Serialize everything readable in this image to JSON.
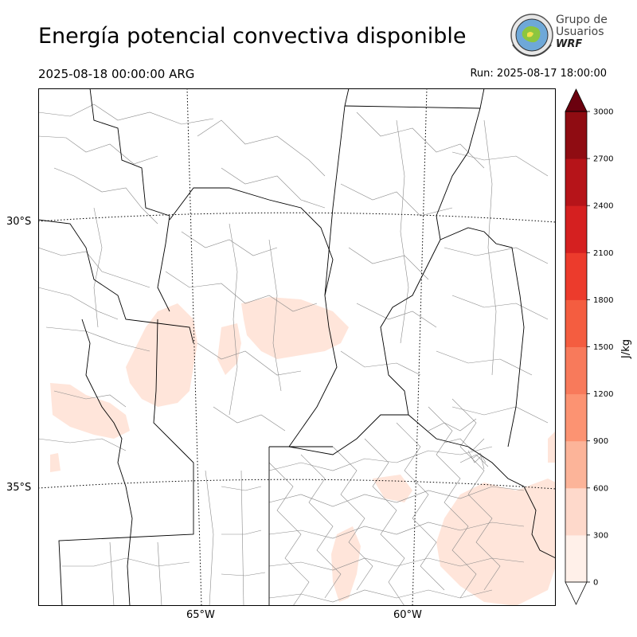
{
  "header": {
    "title": "Energía potencial convectiva disponible",
    "valid_time": "2025-08-18 00:00:00 ARG",
    "run_time": "Run: 2025-08-17 18:00:00"
  },
  "logo": {
    "line1": "Grupo de",
    "line2": "Usuarios",
    "line3": "WRF"
  },
  "map": {
    "lat_labels": [
      "30°S",
      "35°S"
    ],
    "lon_labels": [
      "65°W",
      "60°W"
    ]
  },
  "colorbar": {
    "label": "J/kg",
    "ticks": [
      "0",
      "300",
      "600",
      "900",
      "1200",
      "1500",
      "1800",
      "2100",
      "2400",
      "2700",
      "3000"
    ],
    "colors": [
      "#fff0e9",
      "#fed9cb",
      "#fcb499",
      "#fc9372",
      "#f87a5b",
      "#f45d40",
      "#ec3b2c",
      "#d52020",
      "#b61419",
      "#8f0c12",
      "#6b010e"
    ]
  },
  "colors": {
    "cape_fill": "#ffe5da",
    "border": "#000000",
    "county": "#8a8a8a"
  }
}
